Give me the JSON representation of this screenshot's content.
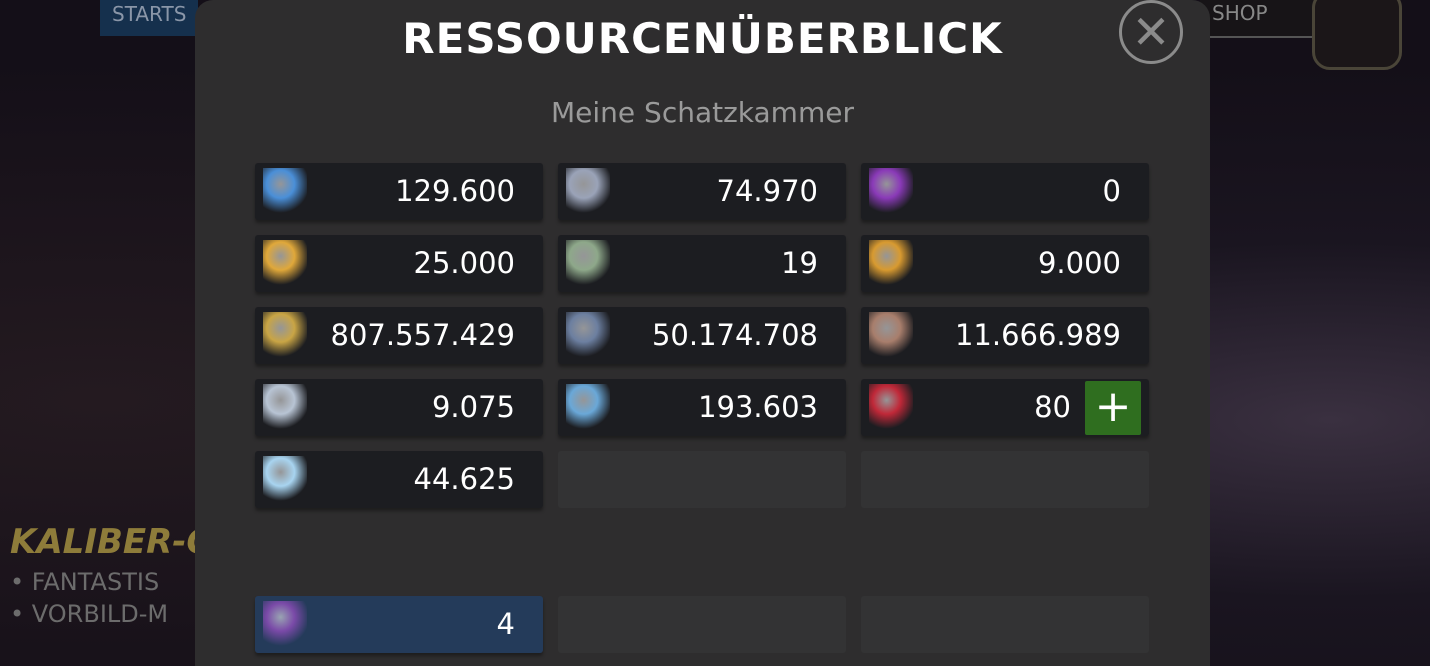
{
  "background": {
    "top_left_button": "STARTS",
    "top_right_button": "SHOP",
    "promo_title": "KALIBER-G",
    "promo_lines": [
      "• FANTASTIS",
      "• VORBILD-M"
    ]
  },
  "dialog": {
    "title": "RESSOURCENÜBERBLICK",
    "subtitle": "Meine Schatzkammer",
    "close_icon": "close-x-icon"
  },
  "resources": [
    {
      "icon": "units-icon",
      "color": "#4a8fd8",
      "value": "129.600"
    },
    {
      "icon": "cards-icon",
      "color": "#9aa3b8",
      "value": "74.970"
    },
    {
      "icon": "purple-ticket-icon",
      "color": "#8a3ab8",
      "value": "0"
    },
    {
      "icon": "golden-crystal-icon",
      "color": "#e0a83a",
      "value": "25.000"
    },
    {
      "icon": "bronze-medallion-icon",
      "color": "#8ea88a",
      "value": "19"
    },
    {
      "icon": "gold-blue-coin-icon",
      "color": "#d89a30",
      "value": "9.000"
    },
    {
      "icon": "gold-nugget-icon",
      "color": "#c9a545",
      "value": "807.557.429"
    },
    {
      "icon": "blue-shield-icon",
      "color": "#6c7fa0",
      "value": "50.174.708"
    },
    {
      "icon": "bronze-shield-icon",
      "color": "#a87e6c",
      "value": "11.666.989"
    },
    {
      "icon": "silver-shield-icon",
      "color": "#b8c4d4",
      "value": "9.075"
    },
    {
      "icon": "blue-shard-icon",
      "color": "#6aa8d8",
      "value": "193.603"
    },
    {
      "icon": "red-card-icon",
      "color": "#c02838",
      "value": "80",
      "add_label": "+"
    },
    {
      "icon": "diamond-icon",
      "color": "#a8d4f0",
      "value": "44.625"
    }
  ],
  "bottom": {
    "icon": "purple-envelope-icon",
    "color": "#7a4aa8",
    "value": "4"
  }
}
